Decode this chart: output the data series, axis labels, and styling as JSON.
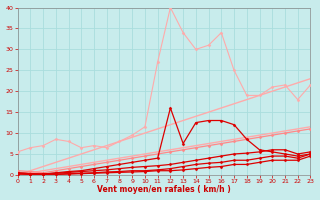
{
  "xlabel": "Vent moyen/en rafales ( km/h )",
  "xlim": [
    0,
    23
  ],
  "ylim": [
    0,
    40
  ],
  "yticks": [
    0,
    5,
    10,
    15,
    20,
    25,
    30,
    35,
    40
  ],
  "xticks": [
    0,
    1,
    2,
    3,
    4,
    5,
    6,
    7,
    8,
    9,
    10,
    11,
    12,
    13,
    14,
    15,
    16,
    17,
    18,
    19,
    20,
    21,
    22,
    23
  ],
  "background_color": "#c8ecec",
  "grid_color": "#aadddd",
  "series": [
    {
      "x": [
        0,
        23
      ],
      "y": [
        0,
        11.5
      ],
      "color": "#ffaaaa",
      "lw": 1.0,
      "marker": null,
      "ls": "-"
    },
    {
      "x": [
        0,
        23
      ],
      "y": [
        0,
        23
      ],
      "color": "#ffaaaa",
      "lw": 1.0,
      "marker": null,
      "ls": "-"
    },
    {
      "x": [
        0,
        1,
        2,
        3,
        4,
        5,
        6,
        7,
        8,
        9,
        10,
        11,
        12,
        13,
        14,
        15,
        16,
        17,
        18,
        19,
        20,
        21,
        22,
        23
      ],
      "y": [
        5.5,
        6.5,
        7.0,
        8.5,
        8.0,
        6.5,
        7.0,
        6.5,
        8.0,
        9.5,
        11.5,
        27,
        40,
        34,
        30,
        31,
        34,
        25,
        19,
        19,
        21,
        21.5,
        18,
        21.5
      ],
      "color": "#ffaaaa",
      "lw": 0.8,
      "marker": "D",
      "ms": 1.5,
      "ls": "-"
    },
    {
      "x": [
        0,
        1,
        2,
        3,
        4,
        5,
        6,
        7,
        8,
        9,
        10,
        11,
        12,
        13,
        14,
        15,
        16,
        17,
        18,
        19,
        20,
        21,
        22,
        23
      ],
      "y": [
        1.0,
        0.8,
        0.5,
        1.0,
        1.5,
        2.0,
        2.5,
        3.0,
        3.5,
        4.0,
        4.5,
        5.0,
        5.5,
        6.0,
        6.5,
        7.0,
        7.5,
        8.0,
        8.5,
        9.0,
        9.5,
        10.0,
        10.5,
        11.0
      ],
      "color": "#ff8888",
      "lw": 0.9,
      "marker": "D",
      "ms": 1.5,
      "ls": "-"
    },
    {
      "x": [
        0,
        1,
        2,
        3,
        4,
        5,
        6,
        7,
        8,
        9,
        10,
        11,
        12,
        13,
        14,
        15,
        16,
        17,
        18,
        19,
        20,
        21,
        22,
        23
      ],
      "y": [
        0.5,
        0.3,
        0.2,
        0.5,
        0.8,
        1.0,
        1.5,
        2.0,
        2.5,
        3.0,
        3.5,
        4.0,
        16.0,
        7.5,
        12.5,
        13.0,
        13.0,
        12.0,
        8.5,
        6.0,
        5.5,
        5.0,
        4.5,
        5.0
      ],
      "color": "#dd0000",
      "lw": 0.9,
      "marker": "D",
      "ms": 1.5,
      "ls": "-"
    },
    {
      "x": [
        0,
        1,
        2,
        3,
        4,
        5,
        6,
        7,
        8,
        9,
        10,
        11,
        12,
        13,
        14,
        15,
        16,
        17,
        18,
        19,
        20,
        21,
        22,
        23
      ],
      "y": [
        0.5,
        0.3,
        0.2,
        0.4,
        0.6,
        0.8,
        1.0,
        1.2,
        1.5,
        1.8,
        2.0,
        2.2,
        2.5,
        3.0,
        3.5,
        4.0,
        4.5,
        5.0,
        5.2,
        5.5,
        6.0,
        6.0,
        5.0,
        5.5
      ],
      "color": "#dd0000",
      "lw": 0.9,
      "marker": "D",
      "ms": 1.5,
      "ls": "-"
    },
    {
      "x": [
        0,
        1,
        2,
        3,
        4,
        5,
        6,
        7,
        8,
        9,
        10,
        11,
        12,
        13,
        14,
        15,
        16,
        17,
        18,
        19,
        20,
        21,
        22,
        23
      ],
      "y": [
        0.3,
        0.2,
        0.1,
        0.2,
        0.3,
        0.4,
        0.5,
        0.7,
        0.8,
        1.0,
        1.0,
        1.2,
        1.5,
        2.0,
        2.5,
        2.8,
        3.0,
        3.5,
        3.5,
        4.0,
        4.5,
        4.5,
        4.0,
        5.0
      ],
      "color": "#dd0000",
      "lw": 0.9,
      "marker": "D",
      "ms": 1.5,
      "ls": "-"
    },
    {
      "x": [
        0,
        1,
        2,
        3,
        4,
        5,
        6,
        7,
        8,
        9,
        10,
        11,
        12,
        13,
        14,
        15,
        16,
        17,
        18,
        19,
        20,
        21,
        22,
        23
      ],
      "y": [
        0.2,
        0.1,
        0.1,
        0.1,
        0.2,
        0.3,
        0.4,
        0.5,
        0.6,
        0.7,
        0.8,
        1.0,
        1.0,
        1.2,
        1.5,
        1.8,
        2.0,
        2.5,
        2.5,
        3.0,
        3.5,
        3.5,
        3.5,
        4.5
      ],
      "color": "#dd0000",
      "lw": 0.9,
      "marker": "D",
      "ms": 1.5,
      "ls": "-"
    }
  ]
}
